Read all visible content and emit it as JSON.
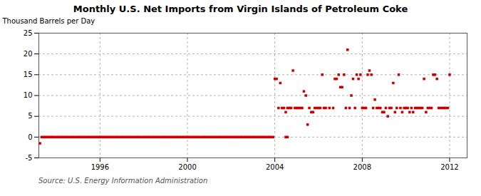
{
  "chart_data": {
    "type": "scatter",
    "title": "Monthly U.S. Net Imports from Virgin Islands of Petroleum Coke",
    "ylabel": "Thousand Barrels per Day",
    "source": "Source: U.S. Energy Information Administration",
    "color": "#cc0000",
    "marker": "square",
    "grid": true,
    "xlim": [
      1993.2,
      2012.8
    ],
    "xticks": [
      1996,
      2000,
      2004,
      2008,
      2012
    ],
    "ylim": [
      -5,
      25
    ],
    "yticks": [
      -5,
      0,
      5,
      10,
      15,
      20,
      25
    ],
    "x": [
      1993.25,
      1993.33,
      1993.42,
      1993.5,
      1993.58,
      1993.67,
      1993.75,
      1993.83,
      1993.92,
      1994.0,
      1994.08,
      1994.17,
      1994.25,
      1994.33,
      1994.42,
      1994.5,
      1994.58,
      1994.67,
      1994.75,
      1994.83,
      1994.92,
      1995.0,
      1995.08,
      1995.17,
      1995.25,
      1995.33,
      1995.42,
      1995.5,
      1995.58,
      1995.67,
      1995.75,
      1995.83,
      1995.92,
      1996.0,
      1996.08,
      1996.17,
      1996.25,
      1996.33,
      1996.42,
      1996.5,
      1996.58,
      1996.67,
      1996.75,
      1996.83,
      1996.92,
      1997.0,
      1997.08,
      1997.17,
      1997.25,
      1997.33,
      1997.42,
      1997.5,
      1997.58,
      1997.67,
      1997.75,
      1997.83,
      1997.92,
      1998.0,
      1998.08,
      1998.17,
      1998.25,
      1998.33,
      1998.42,
      1998.5,
      1998.58,
      1998.67,
      1998.75,
      1998.83,
      1998.92,
      1999.0,
      1999.08,
      1999.17,
      1999.25,
      1999.33,
      1999.42,
      1999.5,
      1999.58,
      1999.67,
      1999.75,
      1999.83,
      1999.92,
      2000.0,
      2000.08,
      2000.17,
      2000.25,
      2000.33,
      2000.42,
      2000.5,
      2000.58,
      2000.67,
      2000.75,
      2000.83,
      2000.92,
      2001.0,
      2001.08,
      2001.17,
      2001.25,
      2001.33,
      2001.42,
      2001.5,
      2001.58,
      2001.67,
      2001.75,
      2001.83,
      2001.92,
      2002.0,
      2002.08,
      2002.17,
      2002.25,
      2002.33,
      2002.42,
      2002.5,
      2002.58,
      2002.67,
      2002.75,
      2002.83,
      2002.92,
      2003.0,
      2003.08,
      2003.17,
      2003.25,
      2003.33,
      2003.42,
      2003.5,
      2003.58,
      2003.67,
      2003.75,
      2003.83,
      2003.92,
      2004.0,
      2004.08,
      2004.17,
      2004.25,
      2004.33,
      2004.42,
      2004.5,
      2004.58,
      2004.67,
      2004.75,
      2004.83,
      2004.92,
      2004.5,
      2004.58,
      2005.0,
      2005.08,
      2005.17,
      2005.25,
      2005.33,
      2005.42,
      2005.5,
      2005.58,
      2005.67,
      2005.75,
      2005.83,
      2005.92,
      2006.0,
      2006.08,
      2006.17,
      2006.25,
      2006.33,
      2006.5,
      2006.67,
      2006.75,
      2006.83,
      2006.92,
      2007.0,
      2007.08,
      2007.17,
      2007.25,
      2007.33,
      2007.42,
      2007.5,
      2007.58,
      2007.67,
      2007.75,
      2007.83,
      2007.92,
      2008.0,
      2008.08,
      2008.17,
      2008.25,
      2008.33,
      2008.42,
      2008.5,
      2008.58,
      2008.67,
      2008.75,
      2008.83,
      2008.92,
      2009.0,
      2009.08,
      2009.17,
      2009.25,
      2009.33,
      2009.42,
      2009.5,
      2009.58,
      2009.67,
      2009.75,
      2009.83,
      2009.92,
      2010.0,
      2010.08,
      2010.17,
      2010.25,
      2010.33,
      2010.42,
      2010.5,
      2010.58,
      2010.67,
      2010.75,
      2010.83,
      2010.92,
      2011.0,
      2011.08,
      2011.17,
      2011.25,
      2011.33,
      2011.42,
      2011.5,
      2011.58,
      2011.67,
      2011.75,
      2011.83,
      2011.92,
      2012.0
    ],
    "values": [
      -1.5,
      0,
      0,
      0,
      0,
      0,
      0,
      0,
      0,
      0,
      0,
      0,
      0,
      0,
      0,
      0,
      0,
      0,
      0,
      0,
      0,
      0,
      0,
      0,
      0,
      0,
      0,
      0,
      0,
      0,
      0,
      0,
      0,
      0,
      0,
      0,
      0,
      0,
      0,
      0,
      0,
      0,
      0,
      0,
      0,
      0,
      0,
      0,
      0,
      0,
      0,
      0,
      0,
      0,
      0,
      0,
      0,
      0,
      0,
      0,
      0,
      0,
      0,
      0,
      0,
      0,
      0,
      0,
      0,
      0,
      0,
      0,
      0,
      0,
      0,
      0,
      0,
      0,
      0,
      0,
      0,
      0,
      0,
      0,
      0,
      0,
      0,
      0,
      0,
      0,
      0,
      0,
      0,
      0,
      0,
      0,
      0,
      0,
      0,
      0,
      0,
      0,
      0,
      0,
      0,
      0,
      0,
      0,
      0,
      0,
      0,
      0,
      0,
      0,
      0,
      0,
      0,
      0,
      0,
      0,
      0,
      0,
      0,
      0,
      0,
      0,
      0,
      0,
      0,
      14,
      14,
      7,
      13,
      7,
      7,
      6,
      7,
      7,
      7,
      16,
      7,
      0,
      0,
      7,
      7,
      7,
      7,
      11,
      10,
      3,
      7,
      6,
      6,
      7,
      7,
      7,
      7,
      15,
      7,
      7,
      7,
      7,
      14,
      14,
      15,
      12,
      12,
      15,
      7,
      21,
      7,
      10,
      14,
      7,
      15,
      14,
      15,
      7,
      7,
      7,
      15,
      16,
      15,
      7,
      9,
      7,
      7,
      7,
      6,
      6,
      7,
      5,
      7,
      7,
      13,
      6,
      7,
      15,
      7,
      6,
      7,
      7,
      7,
      6,
      7,
      6,
      7,
      7,
      7,
      7,
      7,
      14,
      6,
      7,
      7,
      7,
      15,
      15,
      14,
      7,
      7,
      7,
      7,
      7,
      7,
      15
    ]
  }
}
